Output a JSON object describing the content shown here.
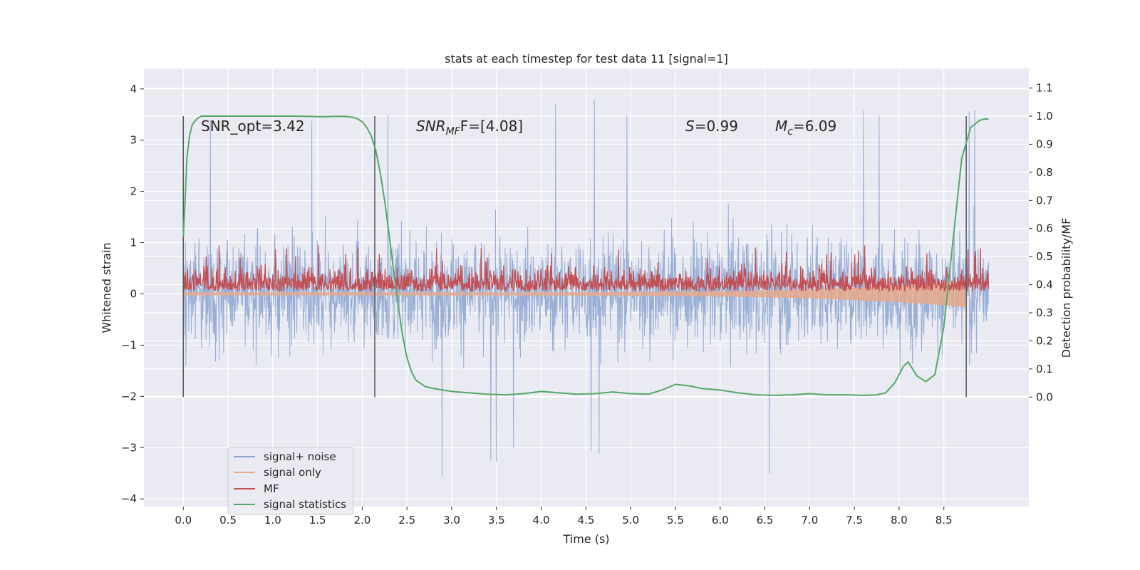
{
  "chart_data": {
    "type": "line",
    "title": "stats at each timestep for test data 11 [signal=1]",
    "xlabel": "Time (s)",
    "ylabel": "Whitened strain",
    "y2label": "Detection probability/MF",
    "xlim": [
      -0.44,
      9.45
    ],
    "ylim": [
      -4.15,
      4.4
    ],
    "y2lim": [
      -0.39,
      1.17
    ],
    "grid": true,
    "x_ticks": [
      "0.0",
      "0.5",
      "1.0",
      "1.5",
      "2.0",
      "2.5",
      "3.0",
      "3.5",
      "4.0",
      "4.5",
      "5.0",
      "5.5",
      "6.0",
      "6.5",
      "7.0",
      "7.5",
      "8.0",
      "8.5"
    ],
    "y_ticks": [
      "4",
      "3",
      "2",
      "1",
      "0",
      "−1",
      "−2",
      "−3",
      "−4"
    ],
    "y2_ticks": [
      "1.1",
      "1.0",
      "0.9",
      "0.8",
      "0.7",
      "0.6",
      "0.5",
      "0.4",
      "0.3",
      "0.2",
      "0.1",
      "0.0"
    ],
    "annotations": {
      "snr_opt": "SNR_opt=3.42",
      "snr_mf_prefix": "SNR",
      "snr_mf_sub": "MF",
      "snr_mf_rest": "F=[4.08]",
      "s_prefix": "S",
      "s_rest": "=0.99",
      "mc_prefix": "M",
      "mc_sub": "c",
      "mc_rest": "=6.09"
    },
    "vertical_markers_s": [
      0.0,
      2.14,
      8.75
    ],
    "series": [
      {
        "name": "signal+ noise",
        "color": "#8fa7d1",
        "axis": "left",
        "kind": "noise",
        "t_range": [
          0,
          9.0
        ],
        "center": 0.05,
        "spread": 0.75,
        "extreme_min": -3.7,
        "extreme_max": 4.05
      },
      {
        "name": "signal only",
        "color": "#e6a98c",
        "axis": "left",
        "kind": "chirp",
        "t_range": [
          0,
          8.75
        ],
        "amplitude_start": 0.02,
        "amplitude_end": 0.25
      },
      {
        "name": "MF",
        "color": "#c44e52",
        "axis": "left",
        "kind": "mf",
        "t_range": [
          0,
          9.0
        ],
        "baseline": 0.05,
        "typical_max": 0.7,
        "extreme_max": 0.95
      },
      {
        "name": "signal statistics",
        "color": "#55a868",
        "axis": "right",
        "x": [
          0.0,
          0.02,
          0.04,
          0.07,
          0.1,
          0.15,
          0.2,
          0.3,
          0.5,
          0.8,
          1.0,
          1.2,
          1.4,
          1.5,
          1.6,
          1.7,
          1.8,
          1.9,
          1.95,
          2.0,
          2.05,
          2.1,
          2.15,
          2.2,
          2.25,
          2.3,
          2.35,
          2.4,
          2.45,
          2.5,
          2.55,
          2.6,
          2.7,
          2.8,
          3.0,
          3.2,
          3.4,
          3.6,
          3.8,
          4.0,
          4.2,
          4.4,
          4.6,
          4.8,
          5.0,
          5.2,
          5.35,
          5.5,
          5.65,
          5.8,
          6.0,
          6.2,
          6.4,
          6.6,
          6.8,
          7.0,
          7.2,
          7.4,
          7.6,
          7.75,
          7.85,
          7.95,
          8.05,
          8.1,
          8.2,
          8.3,
          8.4,
          8.5,
          8.6,
          8.7,
          8.8,
          8.9,
          8.95,
          9.0
        ],
        "values": [
          0.57,
          0.7,
          0.85,
          0.93,
          0.97,
          0.99,
          1.0,
          1.0,
          1.0,
          1.0,
          1.0,
          1.0,
          0.999,
          0.998,
          0.998,
          0.999,
          0.999,
          0.996,
          0.99,
          0.98,
          0.96,
          0.93,
          0.88,
          0.8,
          0.7,
          0.58,
          0.45,
          0.33,
          0.22,
          0.14,
          0.09,
          0.06,
          0.038,
          0.03,
          0.02,
          0.015,
          0.01,
          0.008,
          0.012,
          0.02,
          0.015,
          0.01,
          0.012,
          0.018,
          0.012,
          0.01,
          0.025,
          0.045,
          0.04,
          0.03,
          0.025,
          0.015,
          0.008,
          0.006,
          0.008,
          0.012,
          0.008,
          0.008,
          0.006,
          0.008,
          0.015,
          0.05,
          0.11,
          0.125,
          0.075,
          0.055,
          0.08,
          0.25,
          0.55,
          0.85,
          0.96,
          0.985,
          0.99,
          0.99
        ]
      }
    ],
    "legend": {
      "placement": "lower-left",
      "entries": [
        "signal+ noise",
        "signal only",
        "MF",
        "signal statistics"
      ]
    }
  }
}
